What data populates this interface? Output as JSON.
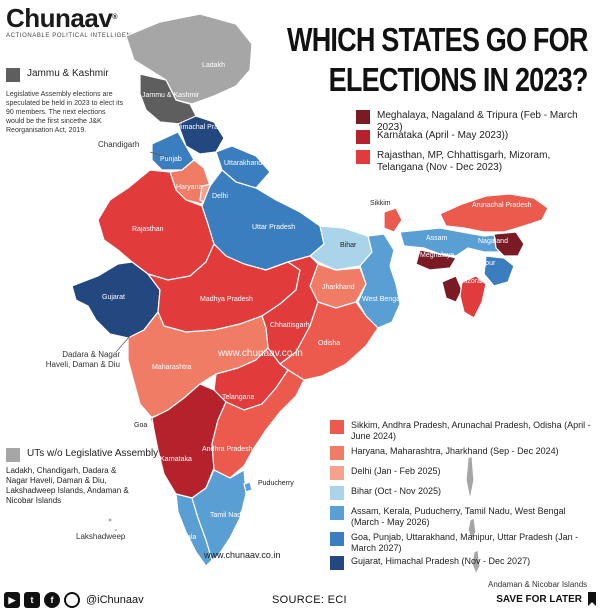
{
  "brand": {
    "name": "Chunaav",
    "registered": "®",
    "tagline": "ACTIONABLE POLITICAL INTELLIGENCE"
  },
  "title": {
    "line1": "WHICH STATES GO FOR",
    "line2": "ELECTIONS IN 2023?"
  },
  "colors": {
    "meghalaya_nagaland_tripura": "#7a1b24",
    "karnataka": "#b5222c",
    "rajasthan_mp_chh_miz_tel": "#e13b3b",
    "sikkim_ap_arunachal_odisha": "#ec5a4d",
    "haryana_maha_jharkhand": "#f07c66",
    "delhi": "#f4a28c",
    "bihar": "#a9d4ea",
    "assam_kerala_puducherry_tn_wb": "#5a9fd4",
    "goa_punjab_uk_manipur_up": "#3a7ec0",
    "gujarat_hp": "#23477f",
    "jk": "#5e5e5e",
    "uts": "#a6a6a6"
  },
  "legend_top": [
    {
      "text": "Meghalaya, Nagaland & Tripura (Feb - March 2023)",
      "color": "#7a1b24"
    },
    {
      "text": "Karnataka (April - May 2023))",
      "color": "#b5222c"
    },
    {
      "text": "Rajasthan, MP, Chhattisgarh, Mizoram, Telangana (Nov - Dec 2023)",
      "color": "#e13b3b"
    }
  ],
  "legend_bottom": [
    {
      "text": "Sikkim, Andhra Pradesh, Arunachal Pradesh, Odisha (April - June 2024)",
      "color": "#ec5a4d"
    },
    {
      "text": "Haryana, Maharashtra, Jharkhand (Sep - Dec 2024)",
      "color": "#f07c66"
    },
    {
      "text": "Delhi (Jan - Feb 2025)",
      "color": "#f4a28c"
    },
    {
      "text": "Bihar (Oct - Nov 2025)",
      "color": "#a9d4ea"
    },
    {
      "text": "Assam, Kerala, Puducherry, Tamil Nadu, West Bengal (March - May 2026)",
      "color": "#5a9fd4"
    },
    {
      "text": "Goa, Punjab, Uttarakhand, Manipur, Uttar Pradesh (Jan - March 2027)",
      "color": "#3a7ec0"
    },
    {
      "text": "Gujarat, Himachal Pradesh (Nov - Dec 2027)",
      "color": "#23477f"
    }
  ],
  "jk_legend": {
    "label": "Jammu & Kashmir",
    "note": "Legislative Assembly elections are speculated be held in 2023 to elect its 90 members. The next elections would be the first sincethe J&K Reorganisation Act, 2019."
  },
  "ut_legend": {
    "label": "UTs w/o Legislative Assembly",
    "note": "Ladakh, Chandigarh, Dadara & Nagar Haveli, Daman & Diu, Lakshadweep Islands, Andaman & Nicobar Islands"
  },
  "map_labels": {
    "ladakh": "Ladakh",
    "jk": "Jammu & Kashmir",
    "hp": "Himachal Pradesh",
    "punjab": "Punjab",
    "uttarakhand": "Uttarakhand",
    "haryana": "Haryana",
    "delhi": "Delhi",
    "rajasthan": "Rajasthan",
    "up": "Uttar Pradesh",
    "bihar": "Bihar",
    "sikkim": "Sikkim",
    "arunachal": "Arunachal Pradesh",
    "assam": "Assam",
    "nagaland": "Nagaland",
    "meghalaya": "Meghalaya",
    "manipur": "Manipur",
    "tripura": "Tripura",
    "mizoram": "Mizoram",
    "gujarat": "Gujarat",
    "mp": "Madhya Pradesh",
    "jharkhand": "Jharkhand",
    "wb": "West Bengal",
    "chhattisgarh": "Chhattisgarh",
    "odisha": "Odisha",
    "maharashtra": "Maharashtra",
    "telangana": "Telangana",
    "goa": "Goa",
    "karnataka": "Karnataka",
    "ap": "Andhra Pradesh",
    "puducherry": "Puducherry",
    "tn": "Tamil Nadu",
    "kerala": "Kerala"
  },
  "external_labels": {
    "chandigarh": "Chandigarh",
    "dadra": "Dadara & Nagar Haveli, Daman & Diu",
    "lakshadweep": "Lakshadweep",
    "andaman": "Andaman & Nicobar Islands"
  },
  "watermarks": {
    "center": "www.chunaav.co.in",
    "bottom": "www.chunaav.co.in"
  },
  "footer": {
    "handle": "@iChunaav",
    "source": "SOURCE: ECI",
    "save": "SAVE FOR LATER",
    "icons": [
      "youtube-icon",
      "twitter-icon",
      "facebook-icon",
      "instagram-icon"
    ]
  }
}
